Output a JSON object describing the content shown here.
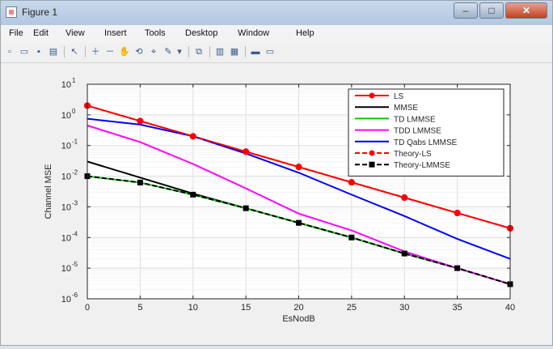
{
  "window": {
    "title": "Figure 1",
    "controls": {
      "minimize": "–",
      "maximize": "□",
      "close": "✕"
    }
  },
  "menu": [
    "File",
    "Edit",
    "View",
    "Insert",
    "Tools",
    "Desktop",
    "Window",
    "Help"
  ],
  "toolbar": {
    "icons": [
      "new-figure-icon",
      "open-file-icon",
      "save-icon",
      "print-icon",
      "pointer-icon",
      "zoom-in-icon",
      "zoom-out-icon",
      "pan-icon",
      "rotate-icon",
      "data-cursor-icon",
      "brush-icon",
      "dropdown-icon",
      "link-plot-icon",
      "colorbar-icon",
      "legend-icon",
      "hide-plot-tools-icon",
      "show-plot-tools-icon"
    ],
    "glyphs": [
      "▫",
      "▭",
      "▪",
      "▤",
      "↖",
      "＋",
      "－",
      "✋",
      "⟲",
      "⌖",
      "✎",
      "▾",
      "⧉",
      "▥",
      "▦",
      "▬",
      "▭"
    ]
  },
  "chart_data": {
    "type": "line",
    "title": "",
    "xlabel": "EsNodB",
    "ylabel": "Channel MSE",
    "xlim": [
      0,
      40
    ],
    "ylim_log10": [
      -6,
      1
    ],
    "yscale": "log",
    "grid": true,
    "legend_position": "top-right",
    "x_ticks": [
      "0",
      "5",
      "10",
      "15",
      "20",
      "25",
      "30",
      "35",
      "40"
    ],
    "y_ticks": [
      {
        "base": "10",
        "exp": "1"
      },
      {
        "base": "10",
        "exp": "0"
      },
      {
        "base": "10",
        "exp": "-1"
      },
      {
        "base": "10",
        "exp": "-2"
      },
      {
        "base": "10",
        "exp": "-3"
      },
      {
        "base": "10",
        "exp": "-4"
      },
      {
        "base": "10",
        "exp": "-5"
      },
      {
        "base": "10",
        "exp": "-6"
      }
    ],
    "series": [
      {
        "name": "LS",
        "color": "#ff0000",
        "marker": "circle",
        "dashed": false,
        "x": [
          0,
          5,
          10,
          15,
          20,
          25,
          30,
          35,
          40
        ],
        "y": [
          2,
          0.63,
          0.2,
          0.063,
          0.02,
          0.0063,
          0.002,
          0.00063,
          0.0002
        ]
      },
      {
        "name": "MMSE",
        "color": "#000000",
        "marker": "none",
        "dashed": false,
        "x": [
          0,
          5,
          10,
          15,
          20,
          25,
          30,
          35,
          40
        ],
        "y": [
          0.03,
          0.009,
          0.0027,
          0.0009,
          0.0003,
          0.0001,
          3e-05,
          1e-05,
          3e-06
        ]
      },
      {
        "name": "TD LMMSE",
        "color": "#00cc00",
        "marker": "none",
        "dashed": false,
        "x": [
          0,
          5,
          10,
          15,
          20,
          25,
          30,
          35,
          40
        ],
        "y": [
          0.01,
          0.0062,
          0.0025,
          0.0009,
          0.0003,
          0.0001,
          3e-05,
          1e-05,
          3e-06
        ]
      },
      {
        "name": "TDD LMMSE",
        "color": "#ff00ff",
        "marker": "none",
        "dashed": false,
        "x": [
          0,
          5,
          10,
          15,
          20,
          25,
          30,
          35,
          40
        ],
        "y": [
          0.45,
          0.13,
          0.025,
          0.004,
          0.0006,
          0.00017,
          3.5e-05,
          1e-05,
          3e-06
        ]
      },
      {
        "name": "TD Qabs LMMSE",
        "color": "#0000ff",
        "marker": "none",
        "dashed": false,
        "x": [
          0,
          5,
          10,
          15,
          20,
          25,
          30,
          35,
          40
        ],
        "y": [
          0.75,
          0.48,
          0.2,
          0.055,
          0.013,
          0.0025,
          0.0005,
          9e-05,
          2e-05
        ]
      },
      {
        "name": "Theory-LS",
        "color": "#ff0000",
        "marker": "circle",
        "dashed": true,
        "x": [
          0,
          5,
          10,
          15,
          20,
          25,
          30,
          35,
          40
        ],
        "y": [
          2,
          0.63,
          0.2,
          0.063,
          0.02,
          0.0063,
          0.002,
          0.00063,
          0.0002
        ]
      },
      {
        "name": "Theory-LMMSE",
        "color": "#000000",
        "marker": "square",
        "dashed": true,
        "x": [
          0,
          5,
          10,
          15,
          20,
          25,
          30,
          35,
          40
        ],
        "y": [
          0.01,
          0.0062,
          0.0025,
          0.0009,
          0.0003,
          0.0001,
          3e-05,
          1e-05,
          3e-06
        ]
      }
    ]
  }
}
